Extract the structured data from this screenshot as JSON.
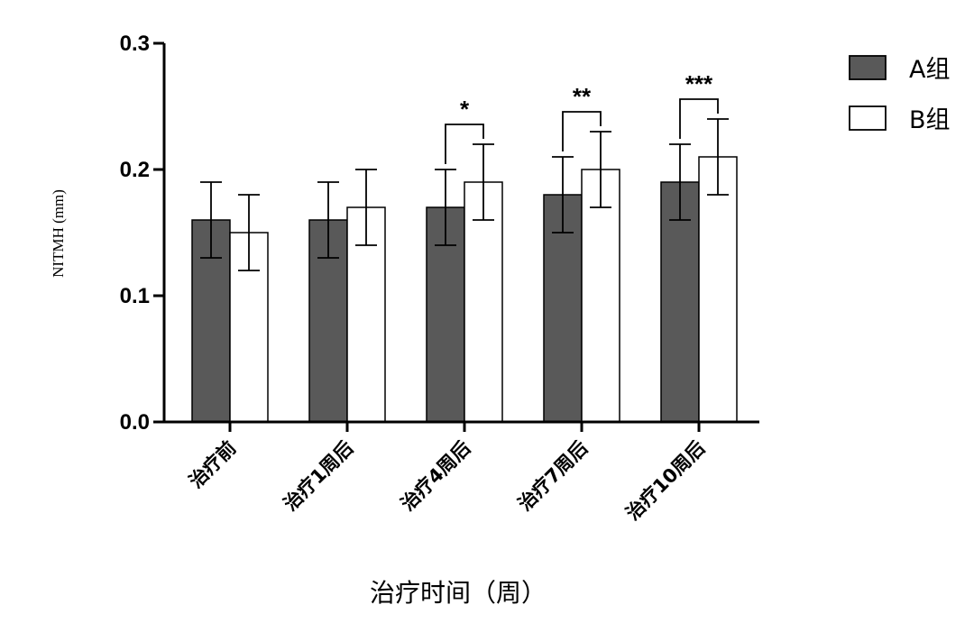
{
  "chart_data": {
    "type": "bar",
    "title": "",
    "xlabel": "治疗时间（周）",
    "ylabel": "NITMH (mm)",
    "ylim": [
      0,
      0.3
    ],
    "yticks": [
      0.0,
      0.1,
      0.2,
      0.3
    ],
    "ytick_labels": [
      "0.0",
      "0.1",
      "0.2",
      "0.3"
    ],
    "categories": [
      "治疗前",
      "治疗1周后",
      "治疗4周后",
      "治疗7周后",
      "治疗10周后"
    ],
    "series": [
      {
        "name": "A组",
        "color": "#595959",
        "values": [
          0.16,
          0.16,
          0.17,
          0.18,
          0.19
        ],
        "errors": [
          0.03,
          0.03,
          0.03,
          0.03,
          0.03
        ]
      },
      {
        "name": "B组",
        "color": "#ffffff",
        "values": [
          0.15,
          0.17,
          0.19,
          0.2,
          0.21
        ],
        "errors": [
          0.03,
          0.03,
          0.03,
          0.03,
          0.03
        ]
      }
    ],
    "significance": [
      {
        "category_index": 2,
        "label": "*"
      },
      {
        "category_index": 3,
        "label": "**"
      },
      {
        "category_index": 4,
        "label": "***"
      }
    ],
    "legend_position": "top-right"
  }
}
